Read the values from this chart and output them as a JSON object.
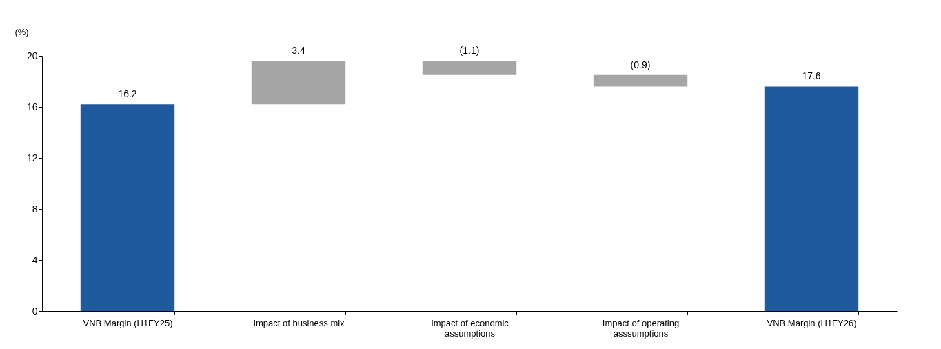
{
  "chart_data": {
    "type": "bar",
    "ylabel": "(%)",
    "categories": [
      "VNB Margin (H1FY25)",
      "Impact of business mix",
      "Impact of economic assumptions",
      "Impact of operating asssumptions",
      "VNB Margin (H1FY26)"
    ],
    "values": [
      16.2,
      3.4,
      -1.1,
      -0.9,
      17.6
    ],
    "base": [
      0,
      16.2,
      19.6,
      18.5,
      0
    ],
    "colors": [
      "#1f5a9e",
      "#a6a6a6",
      "#a6a6a6",
      "#a6a6a6",
      "#1f5a9e"
    ],
    "value_labels": [
      "16.2",
      "3.4",
      "(1.1)",
      "(0.9)",
      "17.6"
    ],
    "ylim": [
      0,
      20
    ],
    "yticks": [
      0,
      4,
      8,
      12,
      16,
      20
    ],
    "grid": false
  }
}
